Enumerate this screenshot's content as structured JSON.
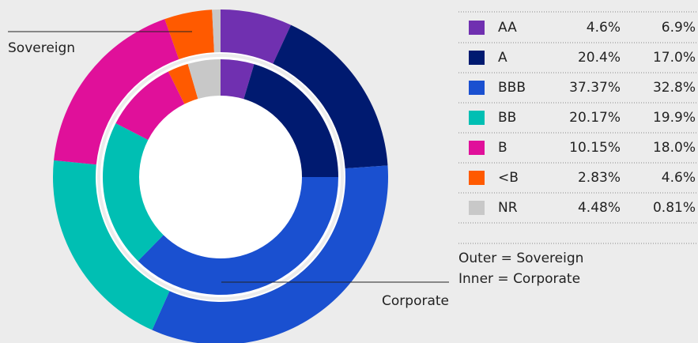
{
  "chart_data": {
    "type": "nested-donut",
    "categories": [
      "AA",
      "A",
      "BBB",
      "BB",
      "B",
      "<B",
      "NR"
    ],
    "colors": [
      "#7030b0",
      "#001a70",
      "#1a50d0",
      "#00bfb3",
      "#e0109a",
      "#ff5a00",
      "#c8c8c8"
    ],
    "series": [
      {
        "name": "Corporate",
        "ring": "inner",
        "values": [
          4.6,
          20.4,
          37.37,
          20.17,
          10.15,
          2.83,
          4.48
        ],
        "value_labels": [
          "4.6%",
          "20.4%",
          "37.37%",
          "20.17%",
          "10.15%",
          "2.83%",
          "4.48%"
        ]
      },
      {
        "name": "Sovereign",
        "ring": "outer",
        "values": [
          6.9,
          17.0,
          32.8,
          19.9,
          18.0,
          4.6,
          0.81
        ],
        "value_labels": [
          "6.9%",
          "17.0%",
          "32.8%",
          "19.9%",
          "18.0%",
          "4.6%",
          "0.81%"
        ]
      }
    ],
    "annotations": [
      "Outer = Sovereign",
      "Inner = Corporate"
    ]
  }
}
